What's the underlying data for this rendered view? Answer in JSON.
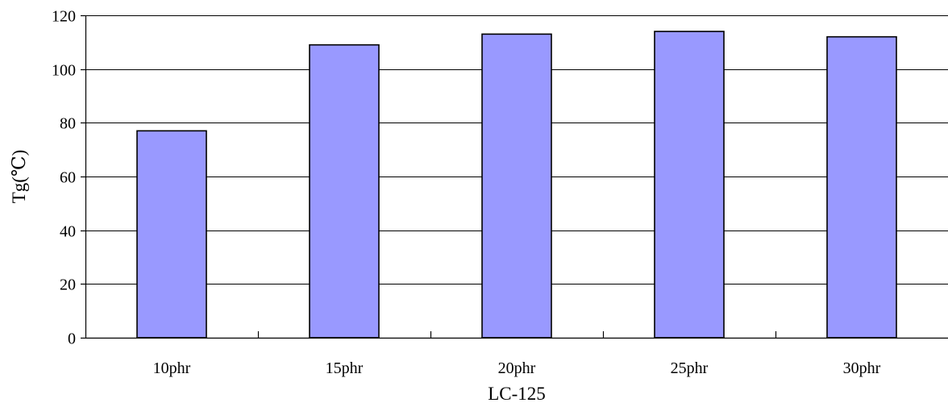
{
  "chart_data": {
    "type": "bar",
    "title": "",
    "xlabel": "LC-125",
    "ylabel": "Tg(℃)",
    "categories": [
      "10phr",
      "15phr",
      "20phr",
      "25phr",
      "30phr"
    ],
    "values": [
      77,
      109,
      113,
      114,
      112
    ],
    "ylim": [
      0,
      120
    ],
    "yticks": [
      0,
      20,
      40,
      60,
      80,
      100,
      120
    ],
    "grid": true,
    "legend": "none",
    "colors": {
      "bar_fill": "#9999ff",
      "bar_stroke": "#000000",
      "grid": "#000000",
      "axis": "#000000"
    }
  }
}
